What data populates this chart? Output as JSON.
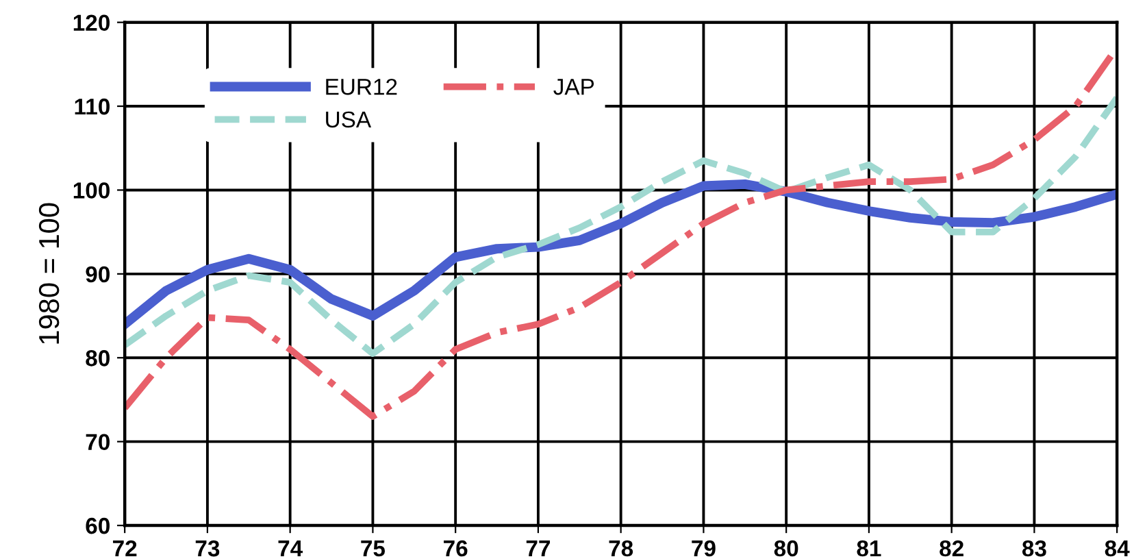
{
  "chart_data": {
    "type": "line",
    "ylabel": "1980 = 100",
    "xlim": [
      72,
      84
    ],
    "ylim": [
      60,
      120
    ],
    "xticks": [
      72,
      73,
      74,
      75,
      76,
      77,
      78,
      79,
      80,
      81,
      82,
      83,
      84
    ],
    "yticks": [
      60,
      70,
      80,
      90,
      100,
      110,
      120
    ],
    "grid": true,
    "legend": "top left",
    "marker": "none",
    "x": [
      72,
      72.5,
      73,
      73.5,
      74,
      74.5,
      75,
      75.5,
      76,
      76.5,
      77,
      77.5,
      78,
      78.5,
      79,
      79.5,
      80,
      80.5,
      81,
      81.5,
      82,
      82.5,
      83,
      83.5,
      84
    ],
    "series": [
      {
        "name": "EUR12",
        "color": "#4a5fcf",
        "line_style": "solid",
        "values": [
          84,
          88,
          90.5,
          91.8,
          90.5,
          87,
          85,
          88,
          92,
          93,
          93.2,
          94,
          96,
          98.5,
          100.5,
          100.7,
          99.8,
          98.5,
          97.5,
          96.7,
          96.2,
          96.1,
          96.8,
          98,
          99.5
        ]
      },
      {
        "name": "USA",
        "color": "#9fd8d0",
        "line_style": "dashed",
        "values": [
          81.5,
          85,
          88,
          89.8,
          89,
          84.5,
          80.5,
          84,
          89,
          92,
          93.5,
          95.5,
          98,
          101,
          103.5,
          102,
          99.8,
          101.5,
          103,
          100,
          95,
          95,
          99,
          104,
          111
        ]
      },
      {
        "name": "JAP",
        "color": "#e8606a",
        "line_style": "dashdot",
        "values": [
          74,
          80,
          84.8,
          84.5,
          81,
          77,
          73,
          76,
          81,
          83,
          84,
          86,
          89,
          92.5,
          96,
          98.5,
          100,
          100.5,
          101,
          101,
          101.3,
          103,
          106,
          110,
          117
        ]
      }
    ]
  }
}
